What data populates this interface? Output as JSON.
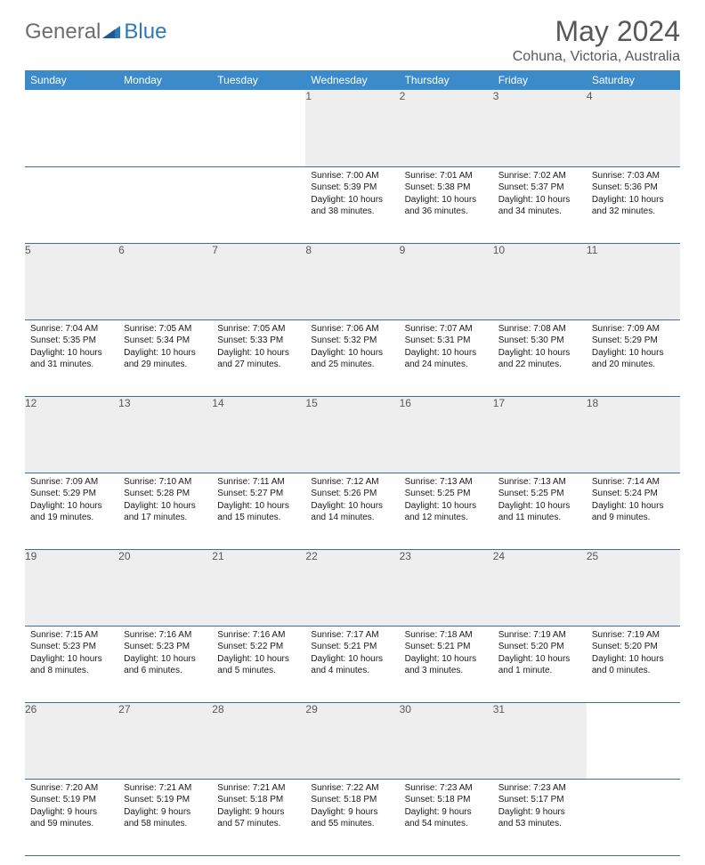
{
  "logo": {
    "text1": "General",
    "text2": "Blue"
  },
  "title": "May 2024",
  "location": "Cohuna, Victoria, Australia",
  "colors": {
    "header_bg": "#3b8bca",
    "header_fg": "#ffffff",
    "daynum_bg": "#eeeeee",
    "rule": "#3b6fa3",
    "logo_gray": "#6e6e6e",
    "logo_blue": "#2f77bb",
    "title_fg": "#585858"
  },
  "weekdays": [
    "Sunday",
    "Monday",
    "Tuesday",
    "Wednesday",
    "Thursday",
    "Friday",
    "Saturday"
  ],
  "weeks": [
    [
      null,
      null,
      null,
      {
        "n": "1",
        "sr": "7:00 AM",
        "ss": "5:39 PM",
        "dl": "10 hours and 38 minutes."
      },
      {
        "n": "2",
        "sr": "7:01 AM",
        "ss": "5:38 PM",
        "dl": "10 hours and 36 minutes."
      },
      {
        "n": "3",
        "sr": "7:02 AM",
        "ss": "5:37 PM",
        "dl": "10 hours and 34 minutes."
      },
      {
        "n": "4",
        "sr": "7:03 AM",
        "ss": "5:36 PM",
        "dl": "10 hours and 32 minutes."
      }
    ],
    [
      {
        "n": "5",
        "sr": "7:04 AM",
        "ss": "5:35 PM",
        "dl": "10 hours and 31 minutes."
      },
      {
        "n": "6",
        "sr": "7:05 AM",
        "ss": "5:34 PM",
        "dl": "10 hours and 29 minutes."
      },
      {
        "n": "7",
        "sr": "7:05 AM",
        "ss": "5:33 PM",
        "dl": "10 hours and 27 minutes."
      },
      {
        "n": "8",
        "sr": "7:06 AM",
        "ss": "5:32 PM",
        "dl": "10 hours and 25 minutes."
      },
      {
        "n": "9",
        "sr": "7:07 AM",
        "ss": "5:31 PM",
        "dl": "10 hours and 24 minutes."
      },
      {
        "n": "10",
        "sr": "7:08 AM",
        "ss": "5:30 PM",
        "dl": "10 hours and 22 minutes."
      },
      {
        "n": "11",
        "sr": "7:09 AM",
        "ss": "5:29 PM",
        "dl": "10 hours and 20 minutes."
      }
    ],
    [
      {
        "n": "12",
        "sr": "7:09 AM",
        "ss": "5:29 PM",
        "dl": "10 hours and 19 minutes."
      },
      {
        "n": "13",
        "sr": "7:10 AM",
        "ss": "5:28 PM",
        "dl": "10 hours and 17 minutes."
      },
      {
        "n": "14",
        "sr": "7:11 AM",
        "ss": "5:27 PM",
        "dl": "10 hours and 15 minutes."
      },
      {
        "n": "15",
        "sr": "7:12 AM",
        "ss": "5:26 PM",
        "dl": "10 hours and 14 minutes."
      },
      {
        "n": "16",
        "sr": "7:13 AM",
        "ss": "5:25 PM",
        "dl": "10 hours and 12 minutes."
      },
      {
        "n": "17",
        "sr": "7:13 AM",
        "ss": "5:25 PM",
        "dl": "10 hours and 11 minutes."
      },
      {
        "n": "18",
        "sr": "7:14 AM",
        "ss": "5:24 PM",
        "dl": "10 hours and 9 minutes."
      }
    ],
    [
      {
        "n": "19",
        "sr": "7:15 AM",
        "ss": "5:23 PM",
        "dl": "10 hours and 8 minutes."
      },
      {
        "n": "20",
        "sr": "7:16 AM",
        "ss": "5:23 PM",
        "dl": "10 hours and 6 minutes."
      },
      {
        "n": "21",
        "sr": "7:16 AM",
        "ss": "5:22 PM",
        "dl": "10 hours and 5 minutes."
      },
      {
        "n": "22",
        "sr": "7:17 AM",
        "ss": "5:21 PM",
        "dl": "10 hours and 4 minutes."
      },
      {
        "n": "23",
        "sr": "7:18 AM",
        "ss": "5:21 PM",
        "dl": "10 hours and 3 minutes."
      },
      {
        "n": "24",
        "sr": "7:19 AM",
        "ss": "5:20 PM",
        "dl": "10 hours and 1 minute."
      },
      {
        "n": "25",
        "sr": "7:19 AM",
        "ss": "5:20 PM",
        "dl": "10 hours and 0 minutes."
      }
    ],
    [
      {
        "n": "26",
        "sr": "7:20 AM",
        "ss": "5:19 PM",
        "dl": "9 hours and 59 minutes."
      },
      {
        "n": "27",
        "sr": "7:21 AM",
        "ss": "5:19 PM",
        "dl": "9 hours and 58 minutes."
      },
      {
        "n": "28",
        "sr": "7:21 AM",
        "ss": "5:18 PM",
        "dl": "9 hours and 57 minutes."
      },
      {
        "n": "29",
        "sr": "7:22 AM",
        "ss": "5:18 PM",
        "dl": "9 hours and 55 minutes."
      },
      {
        "n": "30",
        "sr": "7:23 AM",
        "ss": "5:18 PM",
        "dl": "9 hours and 54 minutes."
      },
      {
        "n": "31",
        "sr": "7:23 AM",
        "ss": "5:17 PM",
        "dl": "9 hours and 53 minutes."
      },
      null
    ]
  ],
  "labels": {
    "sunrise": "Sunrise:",
    "sunset": "Sunset:",
    "daylight": "Daylight:"
  }
}
